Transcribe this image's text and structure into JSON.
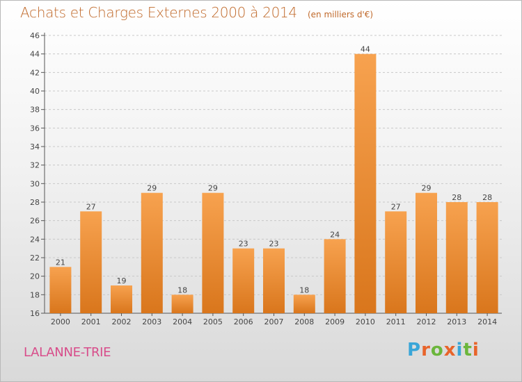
{
  "title": "Achats et Charges Externes 2000 à 2014",
  "unit_note": "(en milliers d'€)",
  "town": "LALANNE-TRIE",
  "logo": {
    "text": "Proxiti",
    "letter_colors": [
      "#3aa6d8",
      "#e8642a",
      "#6bb63c",
      "#e8642a",
      "#3aa6d8",
      "#6bb63c",
      "#e8642a"
    ]
  },
  "colors": {
    "bar_light": "#f7a24f",
    "bar_dark": "#d9761c",
    "title": "#c0692a",
    "town": "#d84c8a"
  },
  "chart_data": {
    "type": "bar",
    "categories": [
      "2000",
      "2001",
      "2002",
      "2003",
      "2004",
      "2005",
      "2006",
      "2007",
      "2008",
      "2009",
      "2010",
      "2011",
      "2012",
      "2013",
      "2014"
    ],
    "values": [
      21,
      27,
      19,
      29,
      18,
      29,
      23,
      23,
      18,
      24,
      44,
      27,
      29,
      28,
      28
    ],
    "ylim": [
      16,
      46
    ],
    "yticks": [
      16,
      18,
      20,
      22,
      24,
      26,
      28,
      30,
      32,
      34,
      36,
      38,
      40,
      42,
      44,
      46
    ],
    "grid": "horizontal dashed",
    "xlabel": "",
    "ylabel": ""
  }
}
